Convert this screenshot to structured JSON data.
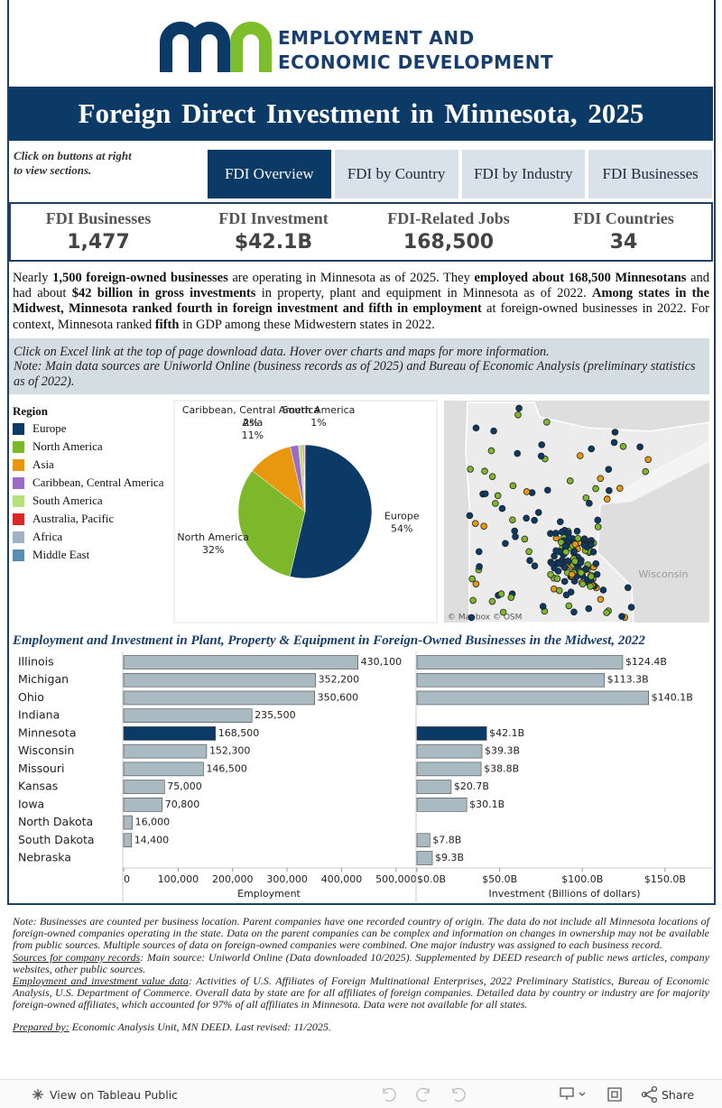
{
  "header": {
    "logo_line1": "EMPLOYMENT AND",
    "logo_line2": "ECONOMIC DEVELOPMENT",
    "title": "Foreign Direct Investment in Minnesota, 2025"
  },
  "nav": {
    "hint": "Click on buttons at right to view sections.",
    "buttons": [
      "FDI Overview",
      "FDI by Country",
      "FDI by Industry",
      "FDI Businesses"
    ],
    "active": 0
  },
  "kpis": [
    {
      "label": "FDI Businesses",
      "value": "1,477"
    },
    {
      "label": "FDI Investment",
      "value": "$42.1B"
    },
    {
      "label": "FDI-Related Jobs",
      "value": "168,500"
    },
    {
      "label": "FDI Countries",
      "value": "34"
    }
  ],
  "summary": [
    {
      "text": "Nearly "
    },
    {
      "text": "1,500 foreign-owned businesses",
      "bold": true
    },
    {
      "text": " are operating in Minnesota as of 2025. They "
    },
    {
      "text": "employed about 168,500 Minnesotans",
      "bold": true
    },
    {
      "text": " and had about "
    },
    {
      "text": "$42 billion in gross investments",
      "bold": true
    },
    {
      "text": " in property, plant and equipment in Minnesota as of 2022. "
    },
    {
      "text": "Among states in the Midwest, Minnesota ranked fourth in foreign investment and fifth in employment",
      "bold": true
    },
    {
      "text": " at foreign-owned businesses in 2022. For context, Minnesota ranked "
    },
    {
      "text": "fifth",
      "bold": true
    },
    {
      "text": " in GDP among these Midwestern states in 2022."
    }
  ],
  "instructions": [
    "Click on Excel link at the top of page download data. Hover over charts and maps for more information.",
    "Note: Main data sources are Uniworld Online (business records as of 2025) and Bureau of Economic Analysis (preliminary statistics as of 2022)."
  ],
  "map": {
    "label": "Wisconsin",
    "attribution": "© Mapbox © OSM"
  },
  "midwest_title": "Employment and Investment in Plant, Property & Equipment in Foreign-Owned Businesses in the Midwest, 2022",
  "chart_data": [
    {
      "type": "pie",
      "legend_title": "Region",
      "categories": [
        "Europe",
        "North America",
        "Asia",
        "Caribbean, Central America",
        "South America",
        "Australia, Pacific",
        "Africa",
        "Middle East"
      ],
      "values": [
        54,
        32,
        11,
        2,
        1,
        0.3,
        0.2,
        0.1
      ],
      "value_labels": [
        "54%",
        "32%",
        "11%",
        "2%",
        "1%",
        null,
        null,
        null
      ],
      "colors": [
        "#0b3a66",
        "#7cb82a",
        "#e8980e",
        "#9b6cc6",
        "#b8e07e",
        "#d7282a",
        "#9fb3c4",
        "#5b8db3"
      ]
    },
    {
      "type": "bar",
      "orientation": "horizontal",
      "x_label": "Employment",
      "categories": [
        "Illinois",
        "Michigan",
        "Ohio",
        "Indiana",
        "Minnesota",
        "Wisconsin",
        "Missouri",
        "Kansas",
        "Iowa",
        "North Dakota",
        "South Dakota",
        "Nebraska"
      ],
      "values": [
        430100,
        352200,
        350600,
        235500,
        168500,
        152300,
        146500,
        75000,
        70800,
        16000,
        14400,
        null
      ],
      "value_labels": [
        "430,100",
        "352,200",
        "350,600",
        "235,500",
        "168,500",
        "152,300",
        "146,500",
        "75,000",
        "70,800",
        "16,000",
        "14,400",
        null
      ],
      "color": "#a9bac2",
      "highlight_index": 4,
      "highlight_color": "#0b3a66",
      "xlim": [
        0,
        535000
      ],
      "xticks": [
        0,
        {
          "value": 100000,
          "label": "100,000"
        },
        {
          "value": 200000,
          "label": "200,000"
        },
        {
          "value": 300000,
          "label": "300,000"
        },
        {
          "value": 400000,
          "label": "400,000"
        },
        {
          "value": 500000,
          "label": "500,000"
        }
      ]
    },
    {
      "type": "bar",
      "orientation": "horizontal",
      "x_label": "Investment (Billions of dollars)",
      "values": [
        124.4,
        113.3,
        140.1,
        null,
        42.1,
        39.3,
        38.8,
        20.7,
        30.1,
        null,
        7.8,
        9.3
      ],
      "value_labels": [
        "$124.4B",
        "$113.3B",
        "$140.1B",
        null,
        "$42.1B",
        "$39.3B",
        "$38.8B",
        "$20.7B",
        "$30.1B",
        null,
        "$7.8B",
        "$9.3B"
      ],
      "color": "#a9bac2",
      "highlight_index": 4,
      "highlight_color": "#0b3a66",
      "xlim": [
        0,
        179
      ],
      "xticks": [
        {
          "value": 0,
          "label": "$0.0B"
        },
        {
          "value": 50,
          "label": "$50.0B"
        },
        {
          "value": 100,
          "label": "$100.0B"
        },
        {
          "value": 150,
          "label": "$150.0B"
        }
      ]
    }
  ],
  "notes": [
    [
      {
        "text": "Note: Businesses are counted per business location. Parent companies have one recorded country of origin. The data do not include all Minnesota locations of foreign-owned companies operating in the state. Data on the parent companies can be complex and information on changes in ownership may not be available from public sources. Multiple sources of data on foreign-owned companies were combined. One major industry was assigned to each business record."
      }
    ],
    [
      {
        "text": "Sources for company records",
        "underline": true
      },
      {
        "text": ": Main source: Uniworld Online (Data downloaded 10/2025). Supplemented by DEED research of public news articles, company websites, other public sources."
      }
    ],
    [
      {
        "text": "Employment and investment value data",
        "underline": true
      },
      {
        "text": ": Activities of U.S. Affiliates of Foreign Multinational Enterprises, 2022 Preliminary Statistics, Bureau of Economic Analysis, U.S. Department of Commerce. Overall data by state are for all affiliates of foreign companies. Detailed data by country or industry are for majority foreign-owned affiliates, which accounted for 97% of all affiliates in Minnesota. Data were not available for all states."
      }
    ],
    [
      {
        "text": "Prepared by:",
        "underline": true
      },
      {
        "text": " Economic Analysis Unit, MN DEED. Last revised: 11/2025."
      }
    ]
  ],
  "footer": {
    "tableau": "View on Tableau Public",
    "share": "Share"
  }
}
